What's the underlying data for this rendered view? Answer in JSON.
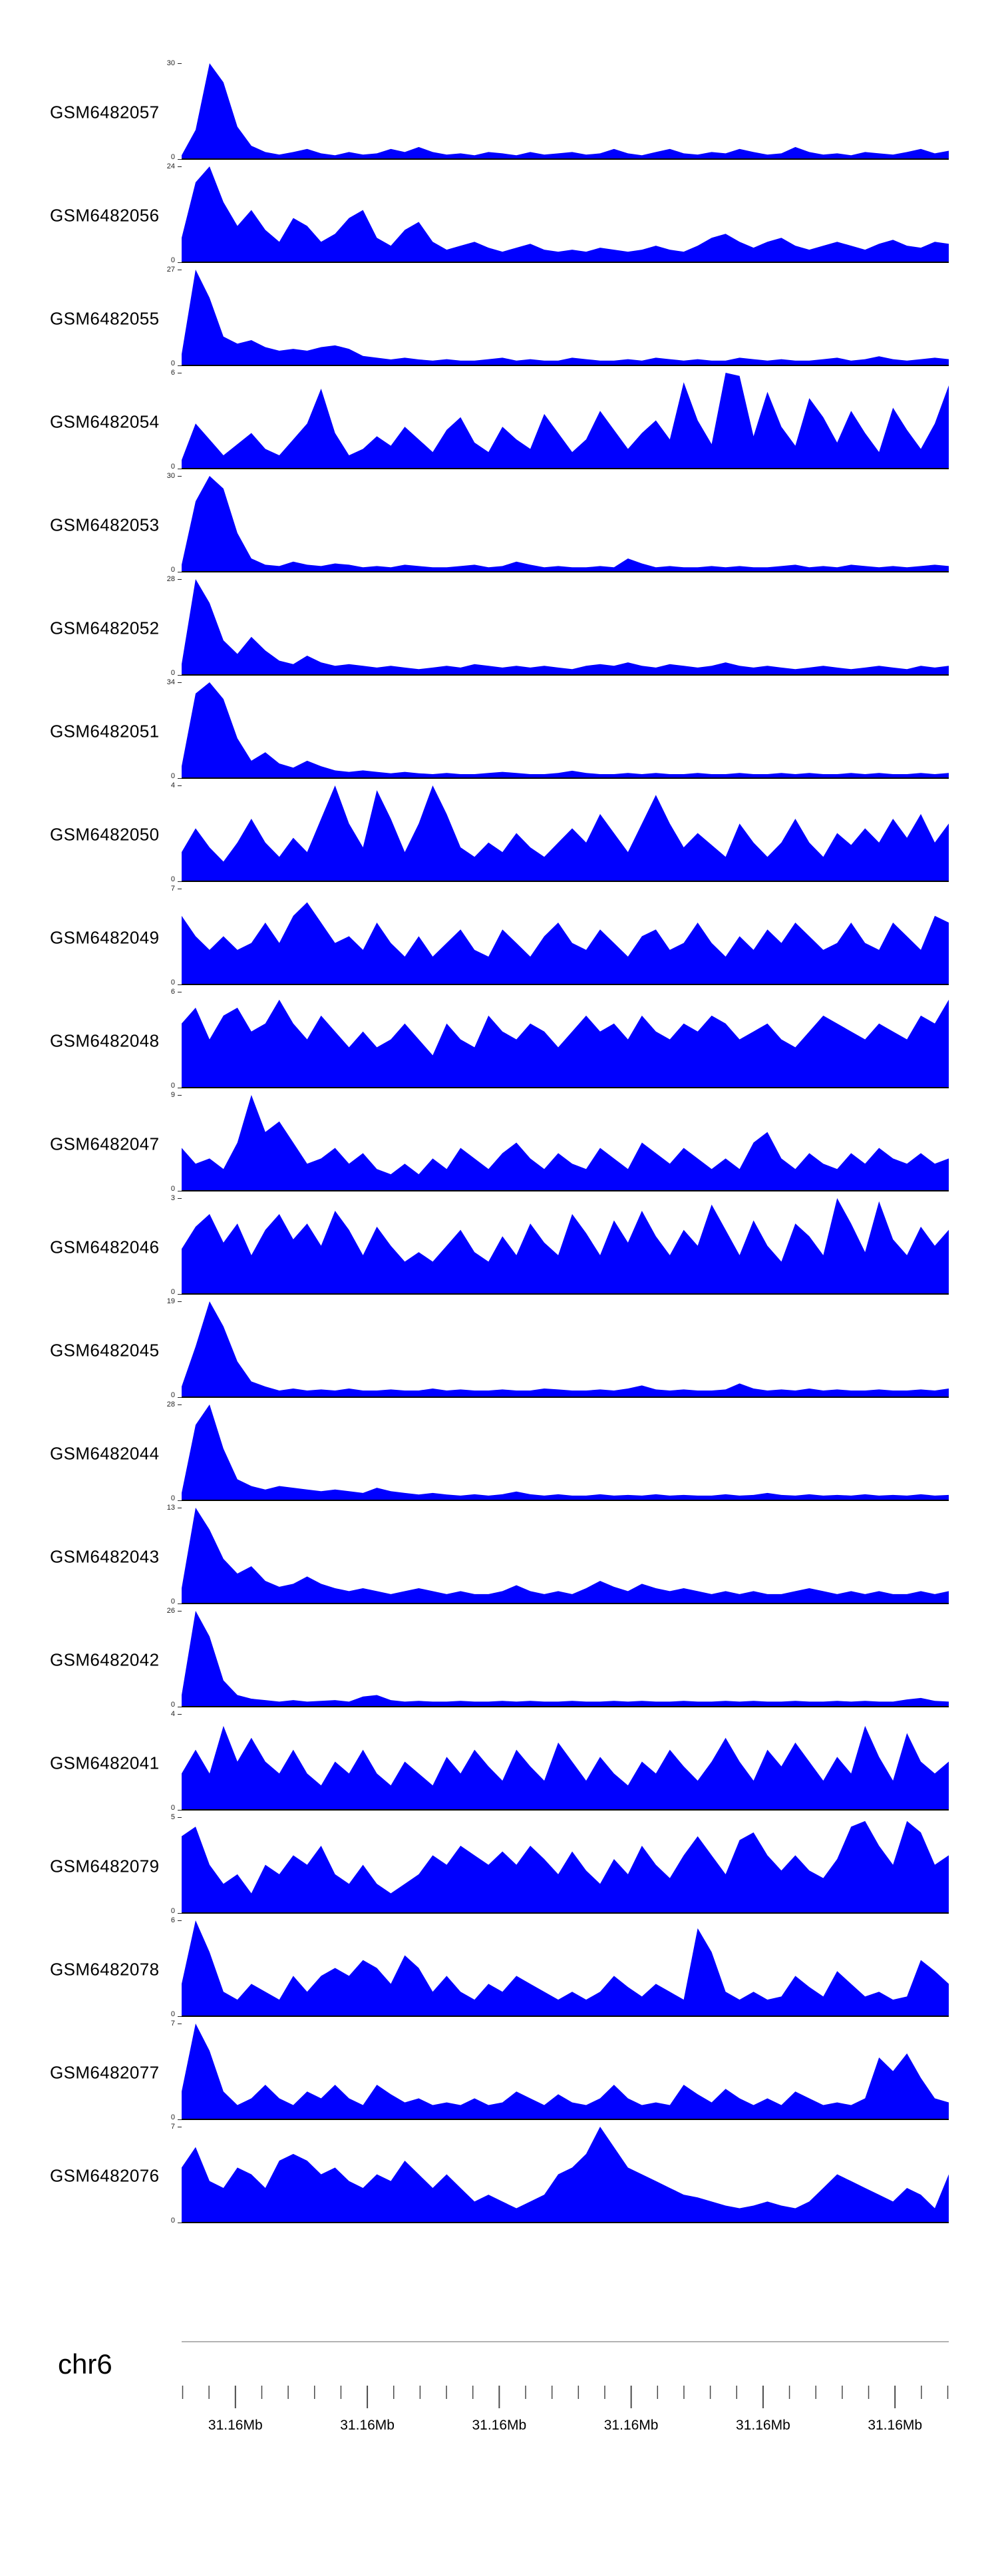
{
  "chart_data": {
    "type": "area",
    "title": "",
    "fill_color": "#0000ff",
    "baseline_color": "#000000",
    "legend": "none",
    "grid": false,
    "xaxis": {
      "chromosome": "chr6",
      "tick_labels": [
        "31.16Mb",
        "31.16Mb",
        "31.16Mb",
        "31.16Mb",
        "31.16Mb",
        "31.16Mb"
      ],
      "minor_tick_count": 30,
      "major_tick_indices": [
        2,
        7,
        12,
        17,
        22,
        27
      ]
    },
    "tracks": [
      {
        "id": "GSM6482057",
        "ymin": 0,
        "ymax": 30,
        "values": [
          1,
          9,
          30,
          24,
          10,
          4,
          2,
          1.2,
          2,
          3,
          1.6,
          1,
          2,
          1.2,
          1.6,
          3,
          2,
          3.6,
          2,
          1.2,
          1.6,
          1,
          2,
          1.6,
          1,
          2,
          1.2,
          1.6,
          2,
          1.2,
          1.6,
          3,
          1.6,
          1,
          2,
          3,
          1.6,
          1.2,
          2,
          1.6,
          3,
          2,
          1.2,
          1.6,
          3.6,
          2,
          1.2,
          1.6,
          1,
          2,
          1.6,
          1.2,
          2,
          3,
          1.6,
          2.4
        ]
      },
      {
        "id": "GSM6482056",
        "ymin": 0,
        "ymax": 24,
        "values": [
          6,
          20,
          24,
          15,
          9,
          13,
          8,
          5,
          11,
          9,
          5,
          7,
          11,
          13,
          6,
          4,
          8,
          10,
          5,
          3,
          4,
          5,
          3.5,
          2.5,
          3.5,
          4.5,
          3,
          2.5,
          3,
          2.5,
          3.5,
          3,
          2.5,
          3,
          4,
          3,
          2.5,
          4,
          6,
          7,
          5,
          3.5,
          5,
          6,
          4,
          3,
          4,
          5,
          4,
          3,
          4.5,
          5.5,
          4,
          3.5,
          5,
          4.5
        ]
      },
      {
        "id": "GSM6482055",
        "ymin": 0,
        "ymax": 27,
        "values": [
          3,
          27,
          19,
          8,
          6,
          7,
          5,
          4,
          4.5,
          4,
          5,
          5.5,
          4.5,
          2.5,
          2,
          1.5,
          2,
          1.5,
          1.2,
          1.6,
          1.2,
          1.2,
          1.6,
          2,
          1.2,
          1.6,
          1.2,
          1.2,
          2,
          1.6,
          1.2,
          1.2,
          1.6,
          1.2,
          2,
          1.6,
          1.2,
          1.6,
          1.2,
          1.2,
          2,
          1.6,
          1.2,
          1.6,
          1.2,
          1.2,
          1.6,
          2,
          1.2,
          1.6,
          2.4,
          1.6,
          1.2,
          1.6,
          2,
          1.6
        ]
      },
      {
        "id": "GSM6482054",
        "ymin": 0,
        "ymax": 6,
        "values": [
          0.5,
          2.8,
          1.8,
          0.8,
          1.5,
          2.2,
          1.2,
          0.8,
          1.8,
          2.8,
          5,
          2.2,
          0.8,
          1.2,
          2,
          1.4,
          2.6,
          1.8,
          1,
          2.4,
          3.2,
          1.6,
          1,
          2.6,
          1.8,
          1.2,
          3.4,
          2.2,
          1,
          1.8,
          3.6,
          2.4,
          1.2,
          2.2,
          3,
          1.8,
          5.4,
          3,
          1.5,
          6,
          5.8,
          2,
          4.8,
          2.6,
          1.4,
          4.4,
          3.2,
          1.6,
          3.6,
          2.2,
          1,
          3.8,
          2.4,
          1.2,
          2.8,
          5.2
        ]
      },
      {
        "id": "GSM6482053",
        "ymin": 0,
        "ymax": 30,
        "values": [
          2,
          22,
          30,
          26,
          12,
          4,
          2,
          1.6,
          3,
          2,
          1.6,
          2.4,
          2,
          1.2,
          1.6,
          1.2,
          2,
          1.6,
          1.2,
          1.2,
          1.6,
          2,
          1.2,
          1.6,
          3,
          2,
          1.2,
          1.6,
          1.2,
          1.2,
          1.6,
          1.2,
          4,
          2.4,
          1.2,
          1.6,
          1.2,
          1.2,
          1.6,
          1.2,
          1.6,
          1.2,
          1.2,
          1.6,
          2,
          1.2,
          1.6,
          1.2,
          2,
          1.6,
          1.2,
          1.6,
          1.2,
          1.6,
          2,
          1.6
        ]
      },
      {
        "id": "GSM6482052",
        "ymin": 0,
        "ymax": 28,
        "values": [
          3,
          28,
          21,
          10,
          6,
          11,
          7,
          4,
          3,
          5.5,
          3.5,
          2.5,
          3,
          2.5,
          2,
          2.5,
          2,
          1.5,
          2,
          2.5,
          2,
          3,
          2.5,
          2,
          2.5,
          2,
          2.5,
          2,
          1.5,
          2.5,
          3,
          2.5,
          3.5,
          2.5,
          2,
          3,
          2.5,
          2,
          2.5,
          3.5,
          2.5,
          2,
          2.5,
          2,
          1.5,
          2,
          2.5,
          2,
          1.5,
          2,
          2.5,
          2,
          1.5,
          2.5,
          2,
          2.5
        ]
      },
      {
        "id": "GSM6482051",
        "ymin": 0,
        "ymax": 34,
        "values": [
          4,
          30,
          34,
          28,
          14,
          6,
          9,
          5,
          3.5,
          6,
          4,
          2.5,
          2,
          2.5,
          2,
          1.5,
          2,
          1.5,
          1.2,
          1.6,
          1.2,
          1.2,
          1.6,
          2,
          1.6,
          1.2,
          1.2,
          1.6,
          2.4,
          1.6,
          1.2,
          1.2,
          1.6,
          1.2,
          1.6,
          1.2,
          1.2,
          1.6,
          1.2,
          1.2,
          1.6,
          1.2,
          1.2,
          1.6,
          1.2,
          1.6,
          1.2,
          1.2,
          1.6,
          1.2,
          1.6,
          1.2,
          1.2,
          1.6,
          1.2,
          1.6
        ]
      },
      {
        "id": "GSM6482050",
        "ymin": 0,
        "ymax": 4,
        "values": [
          1.2,
          2.2,
          1.4,
          0.8,
          1.6,
          2.6,
          1.6,
          1,
          1.8,
          1.2,
          2.6,
          4,
          2.4,
          1.4,
          3.8,
          2.6,
          1.2,
          2.4,
          4,
          2.8,
          1.4,
          1,
          1.6,
          1.2,
          2,
          1.4,
          1,
          1.6,
          2.2,
          1.6,
          2.8,
          2,
          1.2,
          2.4,
          3.6,
          2.4,
          1.4,
          2,
          1.5,
          1,
          2.4,
          1.6,
          1,
          1.6,
          2.6,
          1.6,
          1,
          2,
          1.5,
          2.2,
          1.6,
          2.6,
          1.8,
          2.8,
          1.6,
          2.4
        ]
      },
      {
        "id": "GSM6482049",
        "ymin": 0,
        "ymax": 7,
        "values": [
          5,
          3.5,
          2.5,
          3.5,
          2.5,
          3,
          4.5,
          3,
          5,
          6,
          4.5,
          3,
          3.5,
          2.5,
          4.5,
          3,
          2,
          3.5,
          2,
          3,
          4,
          2.5,
          2,
          4,
          3,
          2,
          3.5,
          4.5,
          3,
          2.5,
          4,
          3,
          2,
          3.5,
          4,
          2.5,
          3,
          4.5,
          3,
          2,
          3.5,
          2.5,
          4,
          3,
          4.5,
          3.5,
          2.5,
          3,
          4.5,
          3,
          2.5,
          4.5,
          3.5,
          2.5,
          5,
          4.5
        ]
      },
      {
        "id": "GSM6482048",
        "ymin": 0,
        "ymax": 6,
        "values": [
          4,
          5,
          3,
          4.5,
          5,
          3.5,
          4,
          5.5,
          4,
          3,
          4.5,
          3.5,
          2.5,
          3.5,
          2.5,
          3,
          4,
          3,
          2,
          4,
          3,
          2.5,
          4.5,
          3.5,
          3,
          4,
          3.5,
          2.5,
          3.5,
          4.5,
          3.5,
          4,
          3,
          4.5,
          3.5,
          3,
          4,
          3.5,
          4.5,
          4,
          3,
          3.5,
          4,
          3,
          2.5,
          3.5,
          4.5,
          4,
          3.5,
          3,
          4,
          3.5,
          3,
          4.5,
          4,
          5.5
        ]
      },
      {
        "id": "GSM6482047",
        "ymin": 0,
        "ymax": 9,
        "values": [
          4,
          2.5,
          3,
          2,
          4.5,
          9,
          5.5,
          6.5,
          4.5,
          2.5,
          3,
          4,
          2.5,
          3.5,
          2,
          1.5,
          2.5,
          1.5,
          3,
          2,
          4,
          3,
          2,
          3.5,
          4.5,
          3,
          2,
          3.5,
          2.5,
          2,
          4,
          3,
          2,
          4.5,
          3.5,
          2.5,
          4,
          3,
          2,
          3,
          2,
          4.5,
          5.5,
          3,
          2,
          3.5,
          2.5,
          2,
          3.5,
          2.5,
          4,
          3,
          2.5,
          3.5,
          2.5,
          3
        ]
      },
      {
        "id": "GSM6482046",
        "ymin": 0,
        "ymax": 3,
        "values": [
          1.4,
          2.1,
          2.5,
          1.6,
          2.2,
          1.2,
          2,
          2.5,
          1.7,
          2.2,
          1.5,
          2.6,
          2,
          1.2,
          2.1,
          1.5,
          1,
          1.3,
          1,
          1.5,
          2,
          1.3,
          1,
          1.8,
          1.2,
          2.2,
          1.6,
          1.2,
          2.5,
          1.9,
          1.2,
          2.3,
          1.6,
          2.6,
          1.8,
          1.2,
          2,
          1.5,
          2.8,
          2,
          1.2,
          2.3,
          1.5,
          1,
          2.2,
          1.8,
          1.2,
          3,
          2.2,
          1.3,
          2.9,
          1.7,
          1.2,
          2.1,
          1.5,
          2
        ]
      },
      {
        "id": "GSM6482045",
        "ymin": 0,
        "ymax": 19,
        "values": [
          2,
          10,
          19,
          14,
          7,
          3,
          2,
          1.2,
          1.6,
          1.2,
          1.4,
          1.2,
          1.6,
          1.2,
          1.2,
          1.4,
          1.2,
          1.2,
          1.6,
          1.2,
          1.4,
          1.2,
          1.2,
          1.4,
          1.2,
          1.2,
          1.6,
          1.4,
          1.2,
          1.2,
          1.4,
          1.2,
          1.6,
          2.2,
          1.4,
          1.2,
          1.4,
          1.2,
          1.2,
          1.4,
          2.6,
          1.6,
          1.2,
          1.4,
          1.2,
          1.6,
          1.2,
          1.4,
          1.2,
          1.2,
          1.4,
          1.2,
          1.2,
          1.4,
          1.2,
          1.6
        ]
      },
      {
        "id": "GSM6482044",
        "ymin": 0,
        "ymax": 28,
        "values": [
          2,
          22,
          28,
          15,
          6,
          4,
          3,
          4,
          3.5,
          3,
          2.5,
          3,
          2.5,
          2,
          3.5,
          2.5,
          2,
          1.5,
          2,
          1.5,
          1.2,
          1.6,
          1.2,
          1.6,
          2.4,
          1.6,
          1.2,
          1.6,
          1.2,
          1.2,
          1.6,
          1.2,
          1.4,
          1.2,
          1.6,
          1.2,
          1.4,
          1.2,
          1.2,
          1.6,
          1.2,
          1.4,
          2,
          1.4,
          1.2,
          1.6,
          1.2,
          1.4,
          1.2,
          1.6,
          1.2,
          1.4,
          1.2,
          1.6,
          1.2,
          1.4
        ]
      },
      {
        "id": "GSM6482043",
        "ymin": 0,
        "ymax": 13,
        "values": [
          2,
          13,
          10,
          6,
          4,
          5,
          3,
          2.2,
          2.6,
          3.6,
          2.6,
          2,
          1.6,
          2,
          1.6,
          1.2,
          1.6,
          2,
          1.6,
          1.2,
          1.6,
          1.2,
          1.2,
          1.6,
          2.4,
          1.6,
          1.2,
          1.6,
          1.2,
          2,
          3,
          2.2,
          1.6,
          2.6,
          2,
          1.6,
          2,
          1.6,
          1.2,
          1.6,
          1.2,
          1.6,
          1.2,
          1.2,
          1.6,
          2,
          1.6,
          1.2,
          1.6,
          1.2,
          1.6,
          1.2,
          1.2,
          1.6,
          1.2,
          1.6
        ]
      },
      {
        "id": "GSM6482042",
        "ymin": 0,
        "ymax": 26,
        "values": [
          3,
          26,
          19,
          7,
          3,
          2,
          1.6,
          1.2,
          1.6,
          1.2,
          1.4,
          1.6,
          1.2,
          2.6,
          3,
          1.6,
          1.2,
          1.4,
          1.2,
          1.2,
          1.4,
          1.2,
          1.2,
          1.4,
          1.2,
          1.4,
          1.2,
          1.2,
          1.4,
          1.2,
          1.2,
          1.4,
          1.2,
          1.4,
          1.2,
          1.2,
          1.4,
          1.2,
          1.2,
          1.4,
          1.2,
          1.4,
          1.2,
          1.2,
          1.4,
          1.2,
          1.2,
          1.4,
          1.2,
          1.4,
          1.2,
          1.2,
          1.8,
          2.2,
          1.4,
          1.2
        ]
      },
      {
        "id": "GSM6482041",
        "ymin": 0,
        "ymax": 4,
        "values": [
          1.5,
          2.5,
          1.5,
          3.5,
          2,
          3,
          2,
          1.5,
          2.5,
          1.5,
          1,
          2,
          1.5,
          2.5,
          1.5,
          1,
          2,
          1.5,
          1,
          2.2,
          1.5,
          2.5,
          1.8,
          1.2,
          2.5,
          1.8,
          1.2,
          2.8,
          2,
          1.2,
          2.2,
          1.5,
          1,
          2,
          1.5,
          2.5,
          1.8,
          1.2,
          2,
          3,
          2,
          1.2,
          2.5,
          1.8,
          2.8,
          2,
          1.2,
          2.2,
          1.5,
          3.5,
          2.2,
          1.2,
          3.2,
          2,
          1.5,
          2
        ]
      },
      {
        "id": "GSM6482079",
        "ymin": 0,
        "ymax": 5,
        "values": [
          4,
          4.5,
          2.5,
          1.5,
          2,
          1,
          2.5,
          2,
          3,
          2.5,
          3.5,
          2,
          1.5,
          2.5,
          1.5,
          1,
          1.5,
          2,
          3,
          2.5,
          3.5,
          3,
          2.5,
          3.2,
          2.5,
          3.5,
          2.8,
          2,
          3.2,
          2.2,
          1.5,
          2.8,
          2,
          3.5,
          2.5,
          1.8,
          3,
          4,
          3,
          2,
          3.8,
          4.2,
          3,
          2.2,
          3,
          2.2,
          1.8,
          2.8,
          4.5,
          4.8,
          3.5,
          2.5,
          4.8,
          4.2,
          2.5,
          3
        ]
      },
      {
        "id": "GSM6482078",
        "ymin": 0,
        "ymax": 6,
        "values": [
          2,
          6,
          4,
          1.5,
          1,
          2,
          1.5,
          1,
          2.5,
          1.5,
          2.5,
          3,
          2.5,
          3.5,
          3,
          2,
          3.8,
          3,
          1.5,
          2.5,
          1.5,
          1,
          2,
          1.5,
          2.5,
          2,
          1.5,
          1,
          1.5,
          1,
          1.5,
          2.5,
          1.8,
          1.2,
          2,
          1.5,
          1,
          5.5,
          4,
          1.5,
          1,
          1.5,
          1,
          1.2,
          2.5,
          1.8,
          1.2,
          2.8,
          2,
          1.2,
          1.5,
          1,
          1.2,
          3.5,
          2.8,
          2
        ]
      },
      {
        "id": "GSM6482077",
        "ymin": 0,
        "ymax": 7,
        "values": [
          2,
          7,
          5,
          2,
          1,
          1.5,
          2.5,
          1.5,
          1,
          2,
          1.5,
          2.5,
          1.5,
          1,
          2.5,
          1.8,
          1.2,
          1.5,
          1,
          1.2,
          1,
          1.5,
          1,
          1.2,
          2,
          1.5,
          1,
          1.8,
          1.2,
          1,
          1.5,
          2.5,
          1.5,
          1,
          1.2,
          1,
          2.5,
          1.8,
          1.2,
          2.2,
          1.5,
          1,
          1.5,
          1,
          2,
          1.5,
          1,
          1.2,
          1,
          1.5,
          4.5,
          3.5,
          4.8,
          3,
          1.5,
          1.2
        ]
      },
      {
        "id": "GSM6482076",
        "ymin": 0,
        "ymax": 7,
        "values": [
          4,
          5.5,
          3,
          2.5,
          4,
          3.5,
          2.5,
          4.5,
          5,
          4.5,
          3.5,
          4,
          3,
          2.5,
          3.5,
          3,
          4.5,
          3.5,
          2.5,
          3.5,
          2.5,
          1.5,
          2,
          1.5,
          1,
          1.5,
          2,
          3.5,
          4,
          5,
          7,
          5.5,
          4,
          3.5,
          3,
          2.5,
          2,
          1.8,
          1.5,
          1.2,
          1,
          1.2,
          1.5,
          1.2,
          1,
          1.5,
          2.5,
          3.5,
          3,
          2.5,
          2,
          1.5,
          2.5,
          2,
          1,
          3.5
        ]
      }
    ]
  }
}
